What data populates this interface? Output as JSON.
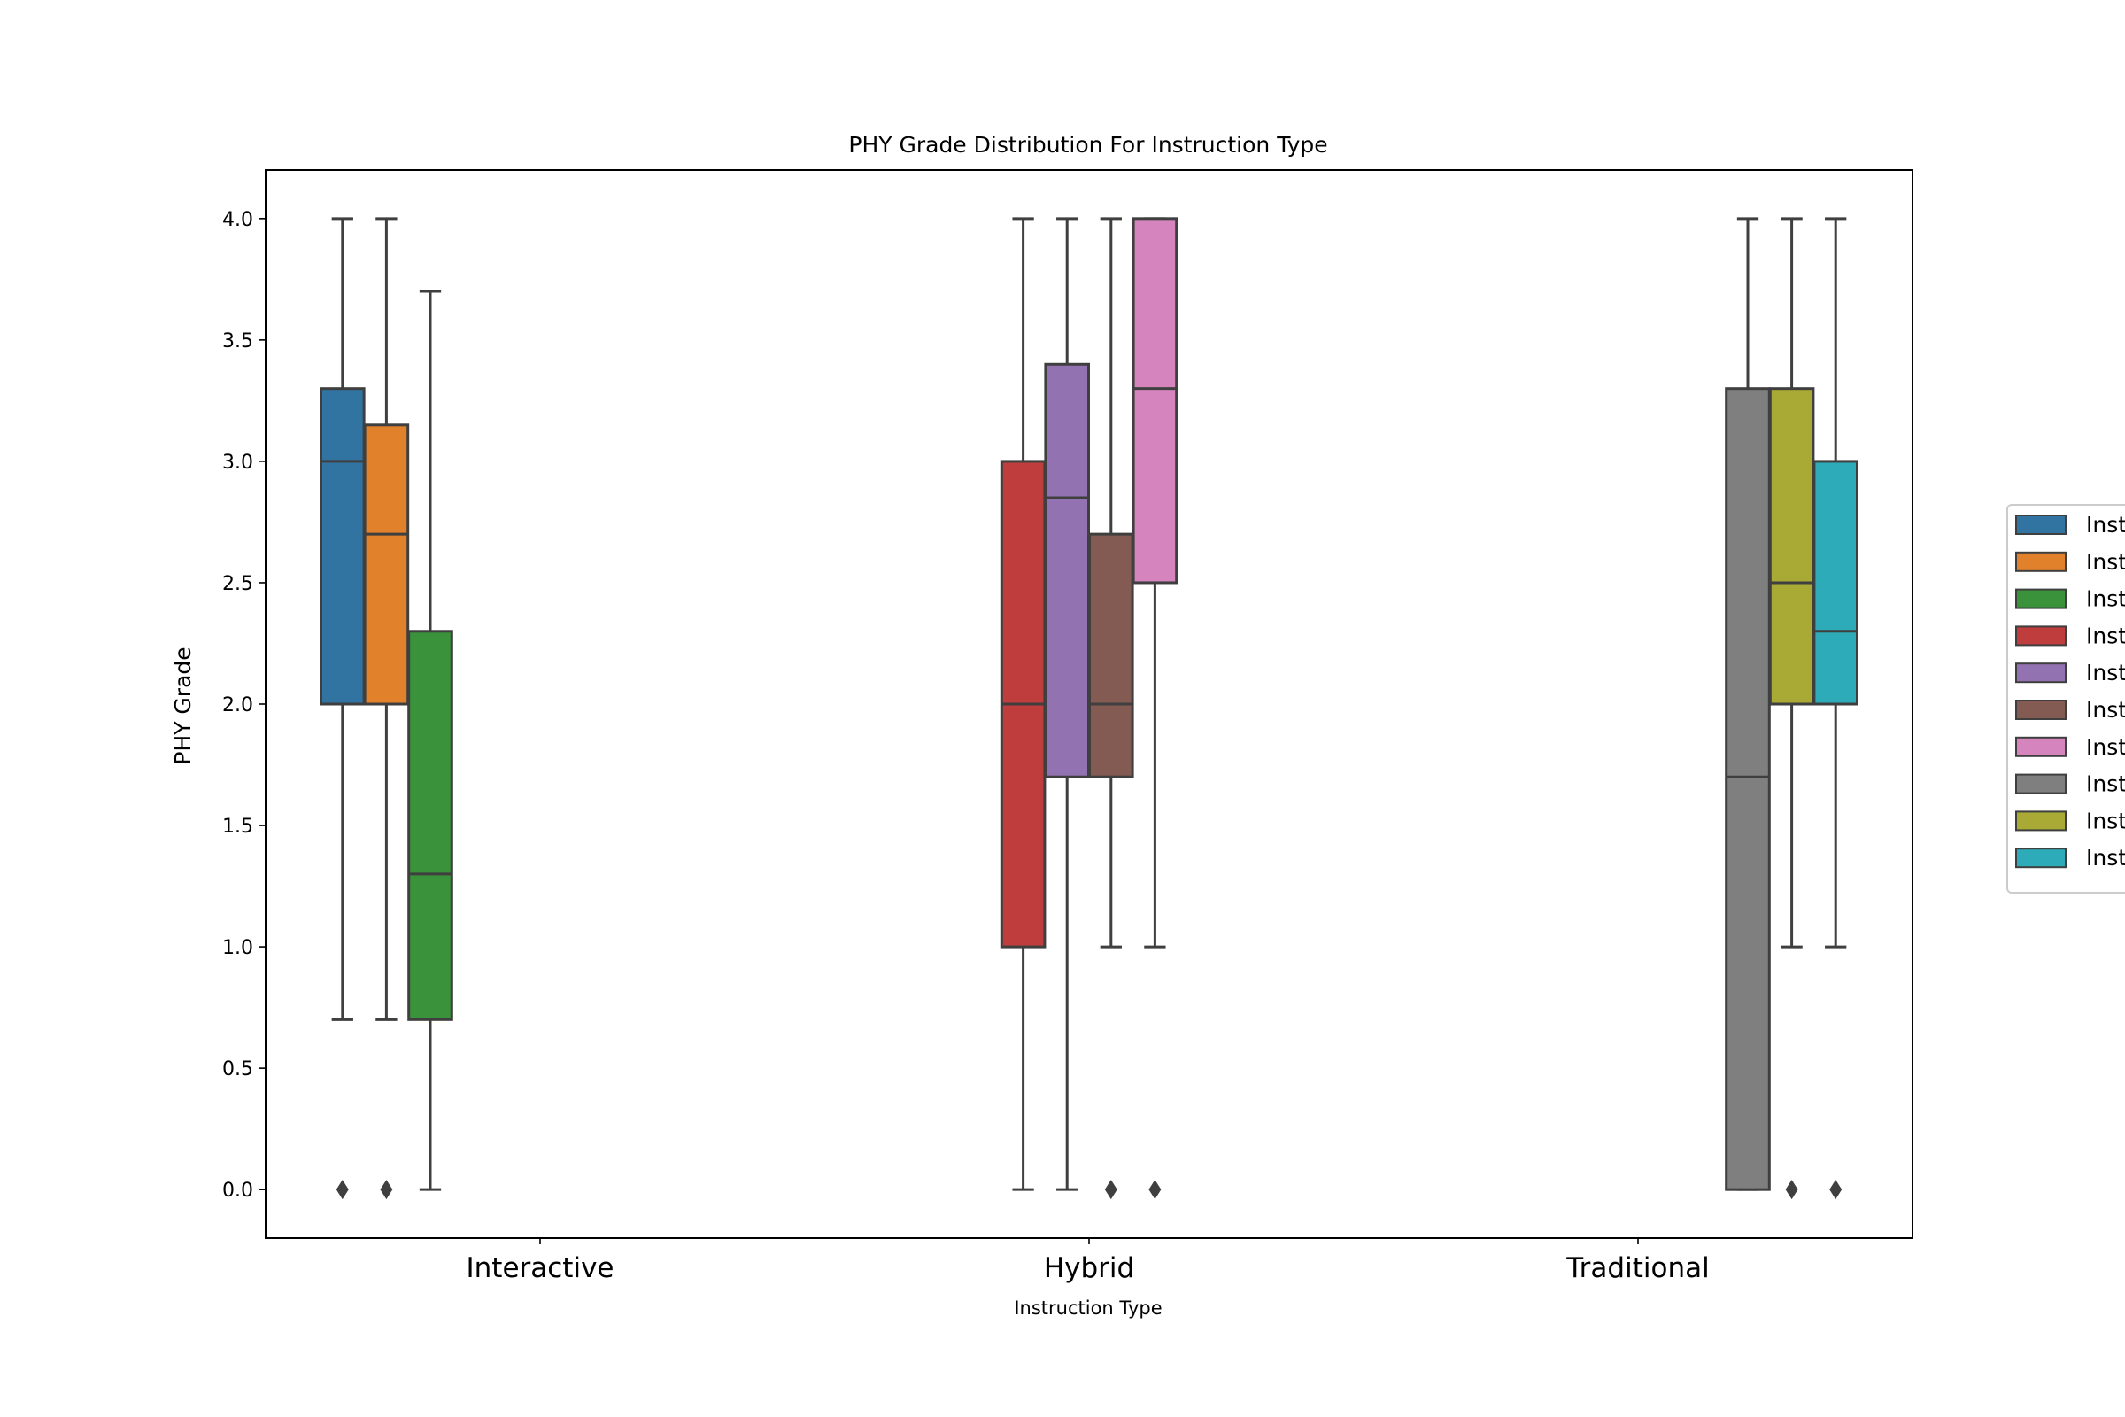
{
  "chart_data": {
    "type": "box",
    "title": "PHY Grade Distribution For Instruction Type",
    "xlabel": "Instruction Type",
    "ylabel": "PHY Grade",
    "categories": [
      "Interactive",
      "Hybrid",
      "Traditional"
    ],
    "ylim": [
      -0.2,
      4.2
    ],
    "yticks": [
      0.0,
      0.5,
      1.0,
      1.5,
      2.0,
      2.5,
      3.0,
      3.5,
      4.0
    ],
    "ytick_labels": [
      "0.0",
      "0.5",
      "1.0",
      "1.5",
      "2.0",
      "2.5",
      "3.0",
      "3.5",
      "4.0"
    ],
    "grid": false,
    "legend_position": "right",
    "legend_labels": [
      "Inst",
      "Inst",
      "Inst",
      "Inst",
      "Inst",
      "Inst",
      "Inst",
      "Inst",
      "Inst",
      "Inst"
    ],
    "hue_slots": 10,
    "series": [
      {
        "color": "#3274a1",
        "category": "Interactive",
        "slot": 0,
        "whislo": 0.7,
        "q1": 2.0,
        "med": 3.0,
        "q3": 3.3,
        "whishi": 4.0,
        "fliers": [
          0.0
        ]
      },
      {
        "color": "#e1812c",
        "category": "Interactive",
        "slot": 1,
        "whislo": 0.7,
        "q1": 2.0,
        "med": 2.7,
        "q3": 3.15,
        "whishi": 4.0,
        "fliers": [
          0.0
        ]
      },
      {
        "color": "#3a923a",
        "category": "Interactive",
        "slot": 2,
        "whislo": 0.0,
        "q1": 0.7,
        "med": 1.3,
        "q3": 2.3,
        "whishi": 3.7,
        "fliers": []
      },
      {
        "color": "#c03d3e",
        "category": "Hybrid",
        "slot": 3,
        "whislo": 0.0,
        "q1": 1.0,
        "med": 2.0,
        "q3": 3.0,
        "whishi": 4.0,
        "fliers": []
      },
      {
        "color": "#9372b2",
        "category": "Hybrid",
        "slot": 4,
        "whislo": 0.0,
        "q1": 1.7,
        "med": 2.85,
        "q3": 3.4,
        "whishi": 4.0,
        "fliers": []
      },
      {
        "color": "#845b53",
        "category": "Hybrid",
        "slot": 5,
        "whislo": 1.0,
        "q1": 1.7,
        "med": 2.0,
        "q3": 2.7,
        "whishi": 4.0,
        "fliers": [
          0.0
        ]
      },
      {
        "color": "#d684bd",
        "category": "Hybrid",
        "slot": 6,
        "whislo": 1.0,
        "q1": 2.5,
        "med": 3.3,
        "q3": 4.0,
        "whishi": 4.0,
        "fliers": [
          0.0
        ]
      },
      {
        "color": "#7f7f7f",
        "category": "Traditional",
        "slot": 7,
        "whislo": 0.0,
        "q1": 0.0,
        "med": 1.7,
        "q3": 3.3,
        "whishi": 4.0,
        "fliers": []
      },
      {
        "color": "#a9aa35",
        "category": "Traditional",
        "slot": 8,
        "whislo": 1.0,
        "q1": 2.0,
        "med": 2.5,
        "q3": 3.3,
        "whishi": 4.0,
        "fliers": [
          0.0
        ]
      },
      {
        "color": "#2eabb8",
        "category": "Traditional",
        "slot": 9,
        "whislo": 1.0,
        "q1": 2.0,
        "med": 2.3,
        "q3": 3.0,
        "whishi": 4.0,
        "fliers": [
          0.0
        ]
      }
    ]
  }
}
